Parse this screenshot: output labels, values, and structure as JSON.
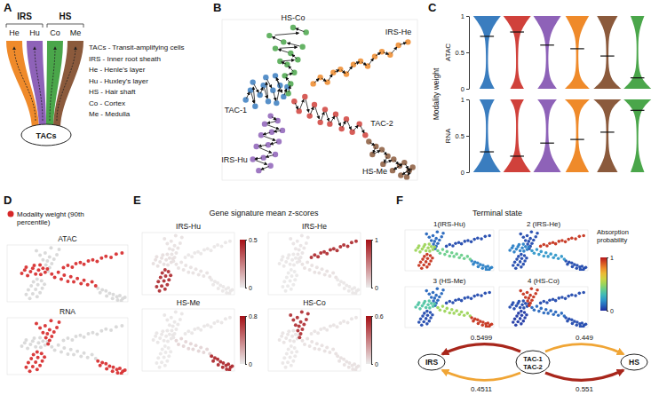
{
  "panel_letters": [
    "A",
    "B",
    "C",
    "D",
    "E",
    "F"
  ],
  "schematic": {
    "groups": [
      {
        "label": "IRS",
        "layers": [
          {
            "label": "He",
            "color": "#ef8a2a"
          },
          {
            "label": "Hu",
            "color": "#8e62b8"
          }
        ]
      },
      {
        "label": "HS",
        "layers": [
          {
            "label": "Co",
            "color": "#4aa64a"
          },
          {
            "label": "Me",
            "color": "#8b5a3c"
          }
        ]
      }
    ],
    "root": "TACs",
    "key": [
      "TACs - Transit-amplifying cells",
      "IRS - Inner root sheath",
      "He - Henle's layer",
      "Hu - Huxley's layer",
      "HS - Hair shaft",
      "Co - Cortex",
      "Me - Medulla"
    ]
  },
  "chart_data": [
    {
      "type": "scatter",
      "xlim": [
        -1.5,
        15
      ],
      "ylim": [
        0,
        10
      ],
      "tick_labels": false,
      "series": [
        {
          "name": "TAC-1",
          "color": "#3a7dbf",
          "x": [
            0.5,
            0.9,
            1.3,
            1.1,
            1.7,
            2.0,
            2.4,
            2.2,
            2.8,
            3.1,
            3.4,
            3.0,
            3.7,
            4.0
          ],
          "values": [
            5.0,
            5.6,
            4.6,
            6.1,
            5.3,
            5.9,
            4.9,
            6.4,
            5.6,
            4.8,
            5.9,
            6.5,
            5.2,
            5.8
          ]
        },
        {
          "name": "TAC-2",
          "color": "#d0413b",
          "x": [
            4.6,
            5.0,
            5.5,
            5.9,
            6.3,
            6.8,
            7.2,
            7.6,
            8.1,
            8.6,
            9.0,
            9.5,
            10.1,
            10.6
          ],
          "values": [
            4.9,
            4.3,
            5.2,
            4.0,
            4.7,
            3.6,
            4.4,
            3.5,
            4.1,
            3.2,
            3.8,
            3.0,
            3.5,
            2.8
          ]
        },
        {
          "name": "IRS-Hu",
          "color": "#8e62b8",
          "x": [
            2.6,
            3.2,
            2.1,
            3.6,
            2.7,
            1.8,
            3.3,
            2.4,
            1.4,
            3.0,
            2.0,
            1.1,
            2.6,
            1.6
          ],
          "values": [
            4.0,
            3.7,
            3.5,
            3.1,
            3.0,
            2.8,
            2.4,
            2.2,
            2.1,
            1.6,
            1.4,
            1.3,
            0.9,
            0.6
          ]
        },
        {
          "name": "IRS-He",
          "color": "#ef8a2a",
          "x": [
            6.2,
            6.8,
            7.4,
            7.9,
            8.5,
            9.0,
            9.6,
            10.2,
            10.8,
            11.4,
            12.0,
            12.7,
            13.4,
            14.2
          ],
          "values": [
            6.0,
            6.4,
            6.1,
            6.7,
            6.9,
            6.6,
            7.2,
            7.4,
            7.1,
            7.7,
            8.0,
            7.8,
            8.4,
            8.6
          ]
        },
        {
          "name": "HS-Me",
          "color": "#8b5a3c",
          "x": [
            10.9,
            11.5,
            11.2,
            12.0,
            12.5,
            12.1,
            13.0,
            13.5,
            12.9,
            13.9,
            14.3,
            13.6,
            14.6,
            14.1
          ],
          "values": [
            2.4,
            2.1,
            1.6,
            1.9,
            1.5,
            1.0,
            1.3,
            0.9,
            0.6,
            1.1,
            0.6,
            0.3,
            0.8,
            0.2
          ]
        },
        {
          "name": "HS-Co",
          "color": "#4aa64a",
          "x": [
            4.1,
            4.3,
            3.8,
            4.6,
            4.0,
            3.4,
            4.9,
            4.3,
            3.0,
            5.3,
            3.7,
            2.5,
            5.6,
            4.5
          ],
          "values": [
            5.4,
            6.0,
            6.5,
            6.7,
            7.2,
            7.4,
            7.5,
            7.9,
            8.2,
            8.3,
            8.6,
            9.0,
            9.2,
            9.5
          ]
        }
      ]
    },
    {
      "type": "violin",
      "ylabel": "Modality weight",
      "categories": [
        null,
        null,
        null,
        null,
        null,
        null
      ],
      "colors": [
        "#3a7dbf",
        "#d0413b",
        "#8e62b8",
        "#ef8a2a",
        "#8b5a3c",
        "#4aa64a"
      ],
      "ylim": [
        0,
        1
      ],
      "yticks": [
        0,
        0.5,
        1
      ],
      "density_grid": [
        0,
        0.1,
        0.2,
        0.3,
        0.4,
        0.5,
        0.6,
        0.7,
        0.8,
        0.9,
        1
      ],
      "panels": [
        {
          "ylabel": "ATAC",
          "densities": [
            [
              0.55,
              0.25,
              0.12,
              0.08,
              0.07,
              0.08,
              0.1,
              0.15,
              0.3,
              0.6,
              1.0
            ],
            [
              0.5,
              0.2,
              0.1,
              0.07,
              0.07,
              0.08,
              0.1,
              0.15,
              0.3,
              0.6,
              1.0
            ],
            [
              0.7,
              0.3,
              0.15,
              0.1,
              0.08,
              0.09,
              0.12,
              0.2,
              0.35,
              0.65,
              1.0
            ],
            [
              0.9,
              0.35,
              0.15,
              0.1,
              0.08,
              0.08,
              0.1,
              0.15,
              0.3,
              0.55,
              0.85
            ],
            [
              1.0,
              0.4,
              0.18,
              0.1,
              0.08,
              0.08,
              0.09,
              0.12,
              0.22,
              0.45,
              0.75
            ],
            [
              1.0,
              0.45,
              0.2,
              0.1,
              0.07,
              0.06,
              0.06,
              0.08,
              0.15,
              0.3,
              0.5
            ]
          ],
          "medians": [
            0.72,
            0.78,
            0.6,
            0.55,
            0.45,
            0.15
          ]
        },
        {
          "ylabel": "RNA",
          "densities": [
            [
              1.0,
              0.6,
              0.3,
              0.15,
              0.1,
              0.08,
              0.07,
              0.08,
              0.12,
              0.25,
              0.55
            ],
            [
              1.0,
              0.6,
              0.3,
              0.15,
              0.1,
              0.08,
              0.07,
              0.07,
              0.1,
              0.2,
              0.5
            ],
            [
              1.0,
              0.65,
              0.35,
              0.2,
              0.12,
              0.09,
              0.08,
              0.1,
              0.15,
              0.3,
              0.7
            ],
            [
              0.85,
              0.55,
              0.3,
              0.15,
              0.1,
              0.08,
              0.08,
              0.1,
              0.15,
              0.35,
              0.9
            ],
            [
              0.75,
              0.45,
              0.22,
              0.12,
              0.09,
              0.08,
              0.08,
              0.1,
              0.18,
              0.4,
              1.0
            ],
            [
              0.5,
              0.3,
              0.15,
              0.08,
              0.06,
              0.06,
              0.07,
              0.1,
              0.2,
              0.45,
              1.0
            ]
          ],
          "medians": [
            0.28,
            0.22,
            0.4,
            0.45,
            0.55,
            0.85
          ]
        }
      ]
    },
    {
      "type": "scatter",
      "legend": "top-left",
      "legend_label": "Modality weight (90th percentile)",
      "color": "#d62728",
      "panels": [
        {
          "title": "ATAC",
          "highlight": [
            "TAC-1",
            "TAC-2",
            "IRS-He"
          ]
        },
        {
          "title": "RNA",
          "highlight": [
            "IRS-Hu",
            "HS-Me",
            "HS-Co"
          ]
        }
      ]
    },
    {
      "type": "scatter",
      "title": "Gene signature mean z-scores",
      "panels": [
        {
          "title": "IRS-Hu",
          "colorbar_range": [
            0,
            0.5
          ],
          "colorbar_ticks": [
            0,
            0.5
          ],
          "cluster_values": [
            0.03,
            0.02,
            0.42,
            0.01,
            0.01,
            0.02
          ]
        },
        {
          "title": "IRS-He",
          "colorbar_range": [
            0,
            1
          ],
          "colorbar_ticks": [
            0,
            1
          ],
          "cluster_values": [
            0.02,
            0.05,
            0.01,
            0.85,
            0.02,
            0.03
          ]
        },
        {
          "title": "HS-Me",
          "colorbar_range": [
            0,
            0.8
          ],
          "colorbar_ticks": [
            0,
            0.8
          ],
          "cluster_values": [
            0.02,
            0.08,
            0.01,
            0.02,
            0.7,
            0.02
          ]
        },
        {
          "title": "HS-Co",
          "colorbar_range": [
            0,
            0.6
          ],
          "colorbar_ticks": [
            0,
            0.6
          ],
          "cluster_values": [
            0.02,
            0.03,
            0.01,
            0.02,
            0.03,
            0.5
          ]
        }
      ]
    },
    {
      "type": "scatter",
      "title": "Terminal state",
      "colorbar_label": "Absorption probability",
      "colorbar_range": [
        0,
        1
      ],
      "colorbar_ticks": [
        0,
        1
      ],
      "panels": [
        {
          "title": "1(IRS-Hu)",
          "cluster_values": [
            0.5,
            0.4,
            0.95,
            0.05,
            0.15,
            0.1
          ]
        },
        {
          "title": "2 (IRS-He)",
          "cluster_values": [
            0.15,
            0.2,
            0.05,
            0.95,
            0.05,
            0.05
          ]
        },
        {
          "title": "3 (HS-Me)",
          "cluster_values": [
            0.35,
            0.5,
            0.05,
            0.05,
            0.95,
            0.1
          ]
        },
        {
          "title": "4 (HS-Co)",
          "cluster_values": [
            0.05,
            0.1,
            0.02,
            0.05,
            0.05,
            0.95
          ]
        }
      ]
    }
  ],
  "flow_diagram": {
    "nodes": [
      "IRS",
      "TAC-1",
      "TAC-2",
      "HS"
    ],
    "flows": [
      {
        "from": 1,
        "to": 0,
        "value": 0.5499,
        "color": "#a8261b"
      },
      {
        "from": 1,
        "to": 3,
        "value": 0.449,
        "color": "#f0a535"
      },
      {
        "from": 2,
        "to": 0,
        "value": 0.4511,
        "color": "#f0a535"
      },
      {
        "from": 2,
        "to": 3,
        "value": 0.551,
        "color": "#a8261b"
      }
    ]
  }
}
